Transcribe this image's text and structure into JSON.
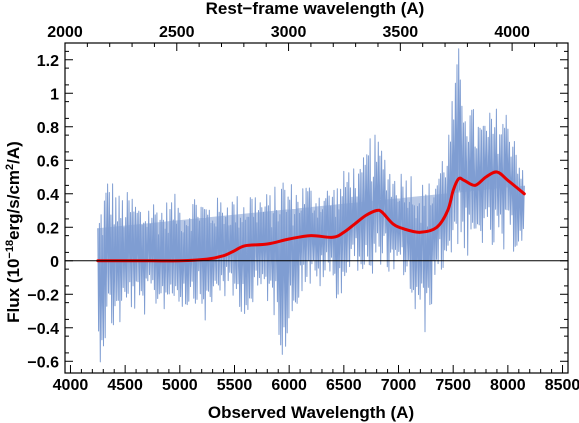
{
  "chart_data": {
    "type": "line",
    "title": "",
    "xlabel": "Observed Wavelength (A)",
    "ylabel_parts": {
      "prefix": "Flux (10",
      "exp1": "−18",
      "mid": "erg/s/cm",
      "exp2": "2",
      "suffix": "/A)"
    },
    "top_xlabel": "Rest−frame wavelength (A)",
    "xlim": [
      3950,
      8550
    ],
    "ylim": [
      -0.67,
      1.3
    ],
    "top_xlim": [
      2000,
      4250
    ],
    "x_ticks": [
      4000,
      4500,
      5000,
      5500,
      6000,
      6500,
      7000,
      7500,
      8000,
      8500
    ],
    "y_ticks": [
      -0.6,
      -0.4,
      -0.2,
      0,
      0.2,
      0.4,
      0.6,
      0.8,
      1,
      1.2
    ],
    "y_tick_labels": [
      "−0.6",
      "−0.4",
      "−0.2",
      "0",
      "0.2",
      "0.4",
      "0.6",
      "0.8",
      "1",
      "1.2"
    ],
    "top_ticks": [
      2000,
      2500,
      3000,
      3500,
      4000
    ],
    "zero_line": true,
    "grid": false,
    "series": [
      {
        "color": "#7f9dd2",
        "kind": "noisy-spectrum",
        "x": [
          4250,
          4350,
          4450,
          4550,
          4650,
          4750,
          4850,
          4950,
          5050,
          5150,
          5250,
          5350,
          5450,
          5550,
          5650,
          5750,
          5850,
          5950,
          6050,
          6150,
          6250,
          6350,
          6450,
          6550,
          6650,
          6750,
          6850,
          6950,
          7050,
          7150,
          7250,
          7350,
          7450,
          7550,
          7650,
          7750,
          7850,
          7950,
          8050,
          8150
        ],
        "upper": [
          0.3,
          0.55,
          0.4,
          0.42,
          0.35,
          0.38,
          0.35,
          0.4,
          0.35,
          0.42,
          0.38,
          0.38,
          0.4,
          0.4,
          0.45,
          0.4,
          0.42,
          0.55,
          0.45,
          0.48,
          0.45,
          0.45,
          0.48,
          0.6,
          0.55,
          0.78,
          0.7,
          0.55,
          0.55,
          0.55,
          0.45,
          0.55,
          0.75,
          1.28,
          0.95,
          0.85,
          0.9,
          0.95,
          0.85,
          0.5
        ],
        "lower": [
          -0.65,
          -0.45,
          -0.4,
          -0.3,
          -0.35,
          -0.28,
          -0.3,
          -0.25,
          -0.3,
          -0.25,
          -0.4,
          -0.2,
          -0.25,
          -0.3,
          -0.35,
          -0.2,
          -0.3,
          -0.6,
          -0.3,
          -0.15,
          -0.2,
          -0.1,
          -0.25,
          -0.1,
          -0.05,
          -0.2,
          0.0,
          -0.15,
          -0.1,
          -0.35,
          -0.45,
          -0.1,
          -0.05,
          0.1,
          -0.05,
          0.1,
          0.05,
          0.0,
          0.05,
          0.1
        ]
      },
      {
        "color": "#e80000",
        "kind": "smoothed",
        "x": [
          4250,
          4500,
          4750,
          5000,
          5250,
          5400,
          5500,
          5600,
          5800,
          6000,
          6200,
          6400,
          6500,
          6600,
          6700,
          6800,
          6850,
          6950,
          7050,
          7200,
          7350,
          7450,
          7500,
          7550,
          7600,
          7700,
          7800,
          7900,
          8000,
          8150
        ],
        "y": [
          0.0,
          0.0,
          0.0,
          0.0,
          0.01,
          0.03,
          0.06,
          0.09,
          0.1,
          0.13,
          0.15,
          0.14,
          0.17,
          0.22,
          0.27,
          0.3,
          0.29,
          0.22,
          0.19,
          0.17,
          0.2,
          0.3,
          0.42,
          0.49,
          0.48,
          0.45,
          0.5,
          0.53,
          0.48,
          0.4
        ]
      }
    ]
  }
}
